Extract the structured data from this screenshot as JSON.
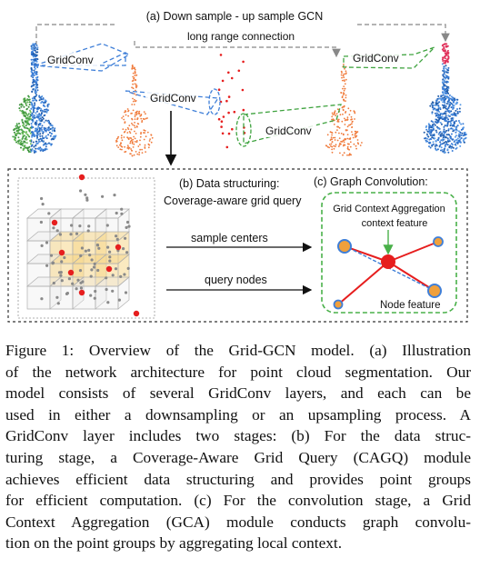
{
  "figure": {
    "top_title": "(a) Down sample - up sample GCN",
    "long_range": "long range connection",
    "gridconv_labels": [
      "GridConv",
      "GridConv",
      "GridConv",
      "GridConv"
    ],
    "panel_b_title_line1": "(b) Data structuring:",
    "panel_b_title_line2": "Coverage-aware grid query",
    "sample_centers": "sample centers",
    "query_nodes": "query nodes",
    "panel_c_title": "(c)  Graph Convolution:",
    "gca_line1": "Grid Context Aggregation",
    "gca_line2": "context feature",
    "node_feature": "Node feature",
    "colors": {
      "blue_dash": "#3f7fd8",
      "green_dash": "#3fa33f",
      "red_node": "#e61e1e",
      "orange_node": "#f0a03c",
      "green_box": "#49b049"
    }
  },
  "caption": {
    "lines": [
      "Figure 1: Overview of the Grid-GCN model. (a) Illustration",
      "of the network architecture for point cloud segmentation. Our",
      "model consists of several GridConv layers, and each can be",
      "used in either a downsampling or an upsampling process. A",
      "GridConv layer includes two stages: (b) For the data struc-",
      "turing stage, a Coverage-Aware Grid Query (CAGQ) module",
      "achieves efficient data structuring and provides point groups",
      "for efficient computation. (c) For the convolution stage, a Grid",
      "Context Aggregation (GCA) module conducts graph convolu-",
      "tion on the point groups by aggregating local context."
    ]
  }
}
